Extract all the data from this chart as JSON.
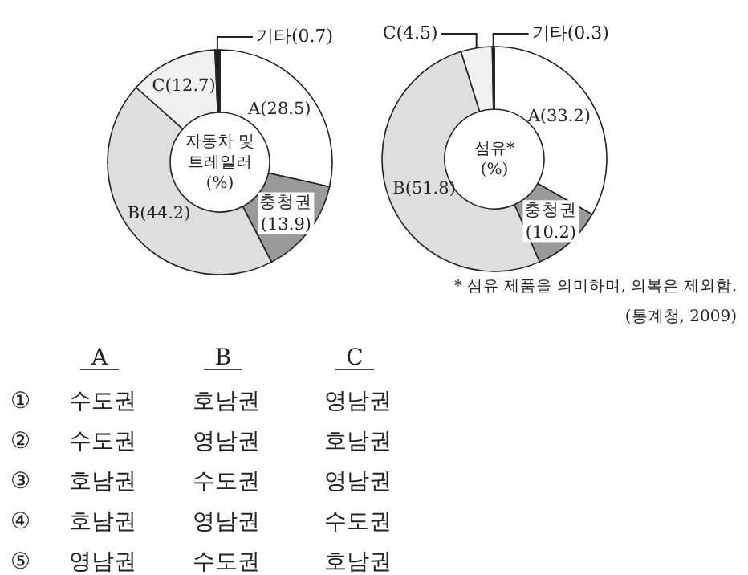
{
  "chart_data": [
    {
      "type": "donut",
      "title": "자동차 및\n트레일러\n(%)",
      "categories": [
        "A",
        "충청권",
        "B",
        "C",
        "기타"
      ],
      "values": [
        28.5,
        13.9,
        44.2,
        12.7,
        0.7
      ],
      "colors": [
        "#ffffff",
        "#9a9a9a",
        "#dedede",
        "#f0f0f0",
        "#222222"
      ],
      "value_labels": [
        "(28.5)",
        "(13.9)",
        "(44.2)",
        "(12.7)",
        "(0.7)"
      ]
    },
    {
      "type": "donut",
      "title": "섬유*\n(%)",
      "categories": [
        "A",
        "충청권",
        "B",
        "C",
        "기타"
      ],
      "values": [
        33.2,
        10.2,
        51.8,
        4.5,
        0.3
      ],
      "colors": [
        "#ffffff",
        "#9a9a9a",
        "#dedede",
        "#f0f0f0",
        "#222222"
      ],
      "value_labels": [
        "(33.2)",
        "(10.2)",
        "(51.8)",
        "(4.5)",
        "(0.3)"
      ],
      "annotations": [
        "* 섬유 제품을 의미하며, 의복은 제외함.",
        "(통계청, 2009)"
      ]
    },
    {
      "type": "other",
      "categories": [
        "A",
        "B",
        "C"
      ],
      "annotations": [
        "① 수도권 호남권 영남권",
        "② 수도권 영남권 호남권",
        "③ 호남권 수도권 영남권",
        "④ 호남권 영남권 수도권",
        "⑤ 영남권 수도권 호남권"
      ]
    }
  ]
}
